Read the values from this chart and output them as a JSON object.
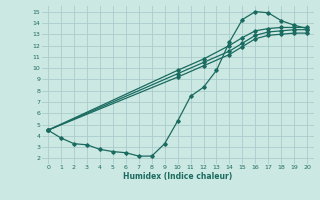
{
  "bg_color": "#cce8e2",
  "grid_color": "#aacccc",
  "line_color": "#1a6b60",
  "xlabel": "Humidex (Indice chaleur)",
  "xlim": [
    -0.5,
    20.5
  ],
  "ylim": [
    1.5,
    15.5
  ],
  "xticks": [
    0,
    1,
    2,
    3,
    4,
    5,
    6,
    7,
    8,
    9,
    10,
    11,
    12,
    13,
    14,
    15,
    16,
    17,
    18,
    19,
    20
  ],
  "yticks": [
    2,
    3,
    4,
    5,
    6,
    7,
    8,
    9,
    10,
    11,
    12,
    13,
    14,
    15
  ],
  "line1_x": [
    0,
    1,
    2,
    3,
    4,
    5,
    6,
    7,
    8,
    9,
    10,
    11,
    12,
    13,
    14,
    15,
    16,
    17,
    18,
    19,
    20
  ],
  "line1_y": [
    4.5,
    3.8,
    3.3,
    3.2,
    2.8,
    2.6,
    2.5,
    2.2,
    2.2,
    3.3,
    5.3,
    7.5,
    8.3,
    9.8,
    12.3,
    14.3,
    15.0,
    14.9,
    14.2,
    13.8,
    13.5
  ],
  "line2_x": [
    0,
    10,
    12,
    14,
    15,
    16,
    17,
    18,
    19,
    20
  ],
  "line2_y": [
    4.5,
    9.8,
    10.8,
    12.0,
    12.7,
    13.3,
    13.5,
    13.6,
    13.6,
    13.6
  ],
  "line3_x": [
    0,
    10,
    12,
    14,
    15,
    16,
    17,
    18,
    19,
    20
  ],
  "line3_y": [
    4.5,
    9.5,
    10.5,
    11.5,
    12.2,
    12.9,
    13.2,
    13.3,
    13.4,
    13.4
  ],
  "line4_x": [
    0,
    10,
    12,
    14,
    15,
    16,
    17,
    18,
    19,
    20
  ],
  "line4_y": [
    4.5,
    9.2,
    10.2,
    11.2,
    11.9,
    12.6,
    12.9,
    13.0,
    13.1,
    13.1
  ]
}
